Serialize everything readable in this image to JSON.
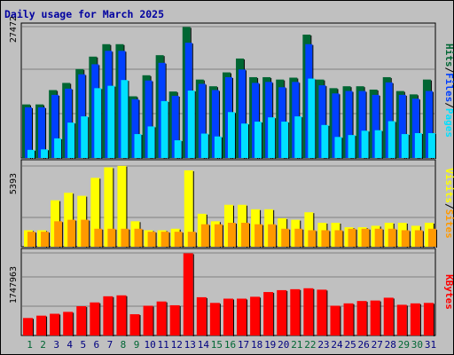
{
  "title": "Daily usage for March 2025",
  "chart_data": [
    {
      "type": "bar",
      "categories": [
        "1",
        "2",
        "3",
        "4",
        "5",
        "6",
        "7",
        "8",
        "9",
        "10",
        "11",
        "12",
        "13",
        "14",
        "15",
        "16",
        "17",
        "18",
        "19",
        "20",
        "21",
        "22",
        "23",
        "24",
        "25",
        "26",
        "27",
        "28",
        "29",
        "30",
        "31"
      ],
      "max_label": "27472",
      "ylim": [
        0,
        27472
      ],
      "right_label": [
        "Pages",
        "/",
        "Files",
        "/",
        "Hits"
      ],
      "series": [
        {
          "name": "Hits",
          "color": "#006633",
          "values": [
            11200,
            11200,
            14200,
            15700,
            18600,
            21200,
            23800,
            23800,
            12900,
            17300,
            21500,
            13900,
            27400,
            16400,
            15000,
            17900,
            20800,
            16900,
            16900,
            16400,
            16800,
            25800,
            16400,
            14600,
            15000,
            15000,
            14300,
            16900,
            14000,
            13300,
            16400
          ]
        },
        {
          "name": "Files",
          "color": "#0040ff",
          "values": [
            10600,
            10600,
            13200,
            14500,
            17500,
            19600,
            22400,
            22400,
            12300,
            16200,
            19900,
            13000,
            24100,
            15500,
            14200,
            16900,
            18500,
            15700,
            15900,
            14800,
            15900,
            23800,
            15200,
            13500,
            14000,
            14000,
            13200,
            15800,
            13200,
            12400,
            14000
          ]
        },
        {
          "name": "Pages",
          "color": "#00e0ff",
          "values": [
            1700,
            1800,
            4100,
            7400,
            8700,
            14600,
            15100,
            16300,
            5000,
            6600,
            11900,
            3700,
            14100,
            5100,
            4500,
            9600,
            7200,
            7600,
            8500,
            7600,
            8700,
            16600,
            6900,
            4400,
            4800,
            5700,
            5800,
            7700,
            5000,
            5200,
            5200
          ]
        }
      ]
    },
    {
      "type": "bar",
      "categories": [
        "1",
        "2",
        "3",
        "4",
        "5",
        "6",
        "7",
        "8",
        "9",
        "10",
        "11",
        "12",
        "13",
        "14",
        "15",
        "16",
        "17",
        "18",
        "19",
        "20",
        "21",
        "22",
        "23",
        "24",
        "25",
        "26",
        "27",
        "28",
        "29",
        "30",
        "31"
      ],
      "max_label": "5393",
      "ylim": [
        0,
        5393
      ],
      "right_label": [
        "Sites",
        "/",
        "Visits"
      ],
      "series": [
        {
          "name": "Visits",
          "color": "#ffff00",
          "values": [
            1100,
            1100,
            3100,
            3600,
            3400,
            4600,
            5300,
            5400,
            1700,
            1100,
            1100,
            1200,
            5100,
            2200,
            1700,
            2800,
            2800,
            2500,
            2500,
            1900,
            1800,
            2300,
            1600,
            1600,
            1300,
            1300,
            1400,
            1600,
            1600,
            1400,
            1600
          ]
        },
        {
          "name": "Sites",
          "color": "#ff9900",
          "values": [
            1000,
            1000,
            1700,
            1800,
            1800,
            1200,
            1200,
            1200,
            1200,
            1000,
            1000,
            1000,
            1000,
            1500,
            1500,
            1600,
            1600,
            1500,
            1500,
            1200,
            1200,
            1100,
            1100,
            1100,
            1200,
            1200,
            1200,
            1200,
            1100,
            1100,
            1200
          ]
        }
      ]
    },
    {
      "type": "bar",
      "categories": [
        "1",
        "2",
        "3",
        "4",
        "5",
        "6",
        "7",
        "8",
        "9",
        "10",
        "11",
        "12",
        "13",
        "14",
        "15",
        "16",
        "17",
        "18",
        "19",
        "20",
        "21",
        "22",
        "23",
        "24",
        "25",
        "26",
        "27",
        "28",
        "29",
        "30",
        "31"
      ],
      "max_label": "1747963",
      "ylim": [
        0,
        1747963
      ],
      "right_label": [
        "KBytes"
      ],
      "series": [
        {
          "name": "KBytes",
          "color": "#ff0000",
          "values": [
            370000,
            420000,
            460000,
            500000,
            620000,
            700000,
            830000,
            850000,
            450000,
            630000,
            720000,
            640000,
            1740000,
            810000,
            690000,
            780000,
            780000,
            820000,
            920000,
            960000,
            980000,
            1000000,
            970000,
            630000,
            680000,
            730000,
            740000,
            800000,
            650000,
            680000,
            690000
          ]
        }
      ]
    }
  ],
  "day_colors": [
    "#006633",
    "#006633",
    "#000080",
    "#000080",
    "#000080",
    "#000080",
    "#000080",
    "#006633",
    "#006633",
    "#000080",
    "#000080",
    "#000080",
    "#000080",
    "#000080",
    "#006633",
    "#006633",
    "#000080",
    "#000080",
    "#000080",
    "#000080",
    "#006633",
    "#006633",
    "#000080",
    "#000080",
    "#000080",
    "#000080",
    "#000080",
    "#000080",
    "#006633",
    "#006633",
    "#000080"
  ],
  "colors": {
    "background": "#c0c0c0",
    "grid": "#808080",
    "title": "#0000a0"
  }
}
